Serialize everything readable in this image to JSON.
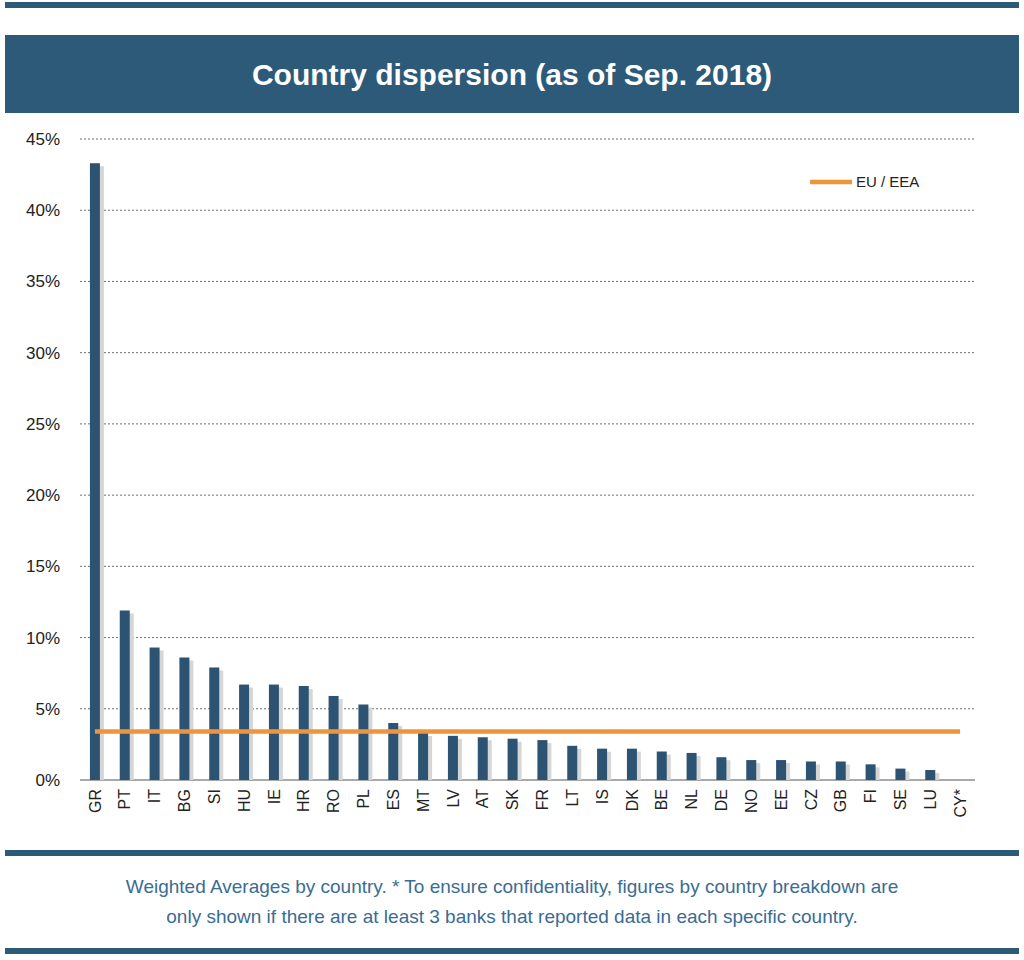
{
  "chart_data": {
    "type": "bar",
    "title": "Country dispersion (as of Sep. 2018)",
    "footnote": "Weighted Averages by country. * To ensure confidentiality, figures by country breakdown are only shown if there are at least 3 banks that reported data in each specific country.",
    "categories": [
      "GR",
      "PT",
      "IT",
      "BG",
      "SI",
      "HU",
      "IE",
      "HR",
      "RO",
      "PL",
      "ES",
      "MT",
      "LV",
      "AT",
      "SK",
      "FR",
      "LT",
      "IS",
      "DK",
      "BE",
      "NL",
      "DE",
      "NO",
      "EE",
      "CZ",
      "GB",
      "FI",
      "SE",
      "LU",
      "CY*"
    ],
    "series": [
      {
        "type": "bar",
        "color": "#2d5372",
        "values": [
          43.3,
          11.9,
          9.3,
          8.6,
          7.9,
          6.7,
          6.7,
          6.6,
          5.9,
          5.3,
          4.0,
          3.3,
          3.1,
          3.0,
          2.9,
          2.8,
          2.4,
          2.2,
          2.2,
          2.0,
          1.9,
          1.6,
          1.4,
          1.4,
          1.3,
          1.3,
          1.1,
          0.8,
          0.7,
          null
        ]
      },
      {
        "name": "EU / EEA",
        "type": "line",
        "color": "#f0943c",
        "values": [
          3.4,
          3.4,
          3.4,
          3.4,
          3.4,
          3.4,
          3.4,
          3.4,
          3.4,
          3.4,
          3.4,
          3.4,
          3.4,
          3.4,
          3.4,
          3.4,
          3.4,
          3.4,
          3.4,
          3.4,
          3.4,
          3.4,
          3.4,
          3.4,
          3.4,
          3.4,
          3.4,
          3.4,
          3.4,
          3.4
        ]
      }
    ],
    "ylim": [
      0,
      45
    ],
    "yticks": [
      {
        "value": 0,
        "label": "0%"
      },
      {
        "value": 5,
        "label": "5%"
      },
      {
        "value": 10,
        "label": "10%"
      },
      {
        "value": 15,
        "label": "15%"
      },
      {
        "value": 20,
        "label": "20%"
      },
      {
        "value": 25,
        "label": "25%"
      },
      {
        "value": 30,
        "label": "30%"
      },
      {
        "value": 35,
        "label": "35%"
      },
      {
        "value": 40,
        "label": "40%"
      },
      {
        "value": 45,
        "label": "45%"
      }
    ],
    "grid": true,
    "legend": "upper right"
  }
}
